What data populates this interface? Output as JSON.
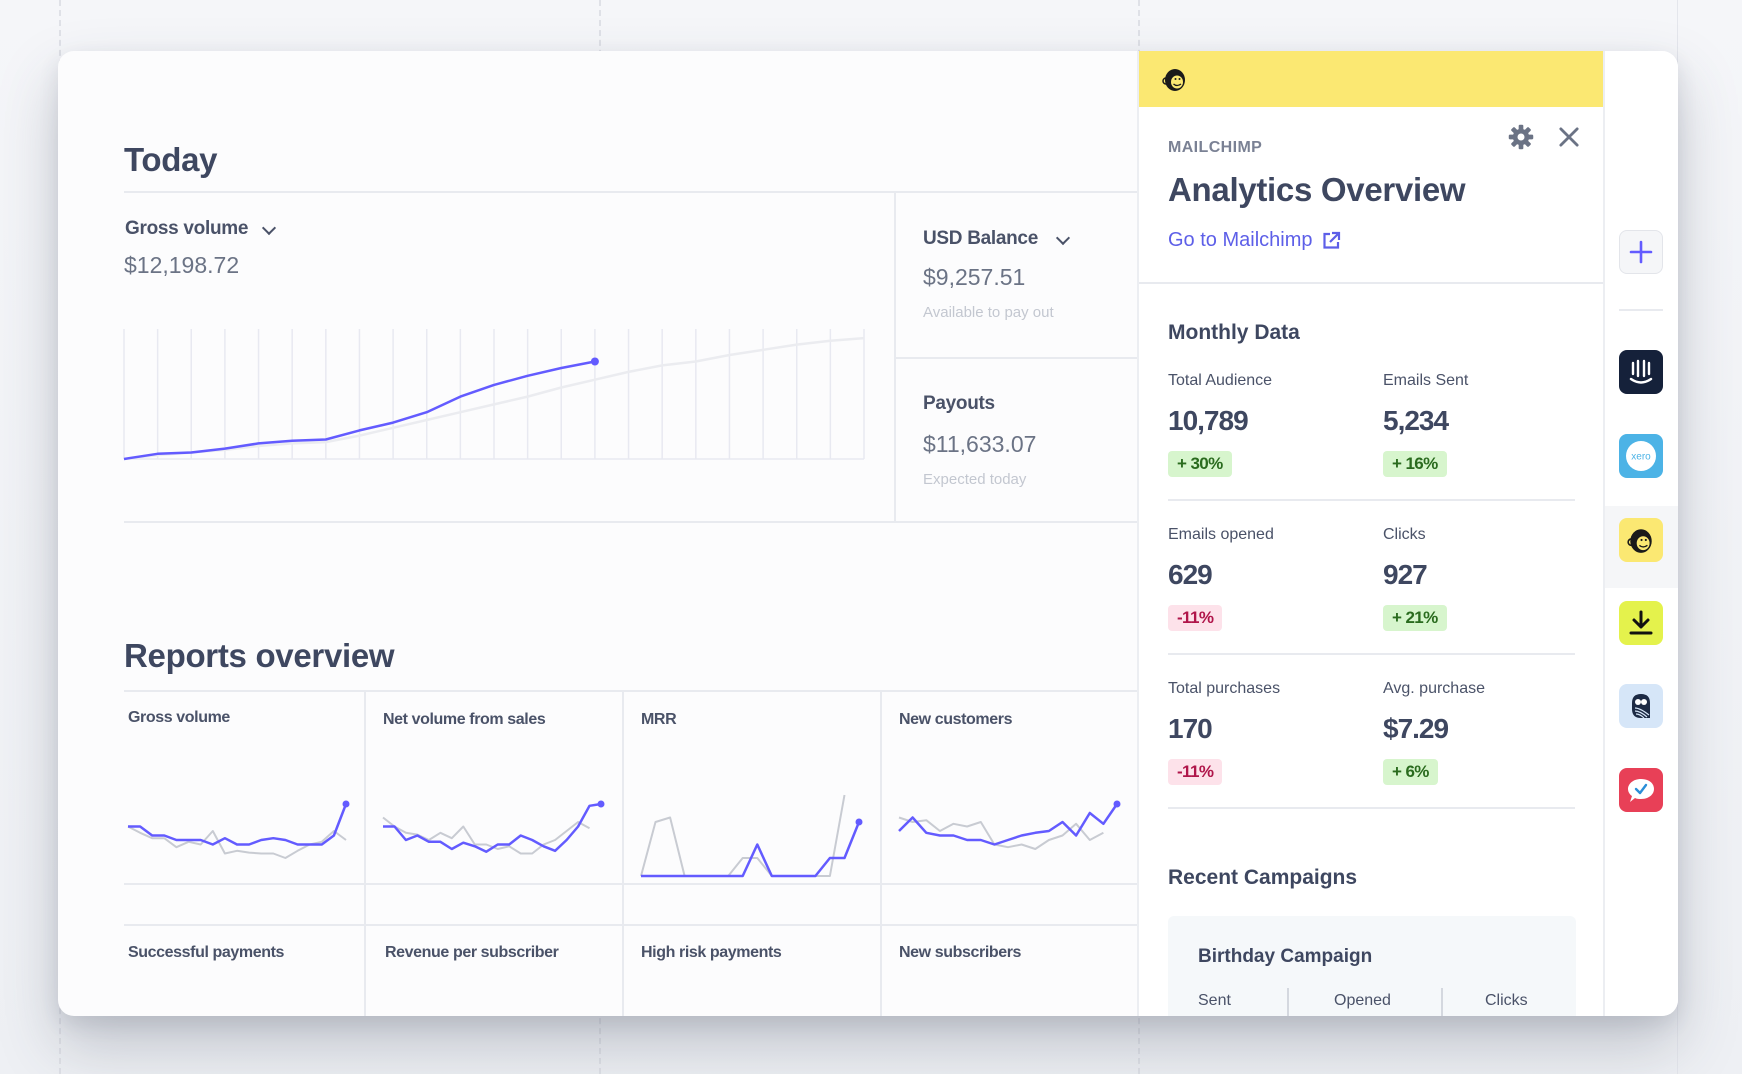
{
  "today": {
    "title": "Today",
    "gross_volume": {
      "label": "Gross volume",
      "value": "$12,198.72"
    },
    "usd_balance": {
      "label": "USD Balance",
      "value": "$9,257.51",
      "sub": "Available to pay out"
    },
    "payouts": {
      "label": "Payouts",
      "value": "$11,633.07",
      "sub": "Expected today"
    }
  },
  "reports": {
    "title": "Reports overview",
    "row1": [
      "Gross volume",
      "Net volume from sales",
      "MRR",
      "New customers"
    ],
    "row2": [
      "Successful payments",
      "Revenue per subscriber",
      "High risk payments",
      "New subscribers"
    ]
  },
  "panel": {
    "kicker": "MAILCHIMP",
    "title": "Analytics Overview",
    "link": "Go to Mailchimp",
    "monthly_title": "Monthly Data",
    "stats": [
      {
        "label": "Total Audience",
        "value": "10,789",
        "change": "+ 30%",
        "trend": "up"
      },
      {
        "label": "Emails Sent",
        "value": "5,234",
        "change": "+ 16%",
        "trend": "up"
      },
      {
        "label": "Emails opened",
        "value": "629",
        "change": "-11%",
        "trend": "down"
      },
      {
        "label": "Clicks",
        "value": "927",
        "change": "+ 21%",
        "trend": "up"
      },
      {
        "label": "Total purchases",
        "value": "170",
        "change": "-11%",
        "trend": "down"
      },
      {
        "label": "Avg. purchase",
        "value": "$7.29",
        "change": "+ 6%",
        "trend": "up"
      }
    ],
    "recent_title": "Recent Campaigns",
    "campaign": {
      "name": "Birthday Campaign",
      "columns": [
        "Sent",
        "Opened",
        "Clicks"
      ]
    }
  },
  "rail": {
    "apps": [
      "add-app",
      "intercom",
      "xero",
      "mailchimp",
      "download-app",
      "owl-app",
      "chat-check-app"
    ]
  },
  "colors": {
    "accent": "#635bff",
    "comparison": "#c8cbd2",
    "mailchimp_yellow": "#fbe872"
  },
  "chart_data": [
    {
      "type": "line",
      "title": "Gross volume",
      "series": [
        {
          "name": "today",
          "values": [
            0,
            4,
            5,
            8,
            12,
            14,
            15,
            22,
            28,
            36,
            48,
            57,
            64,
            70,
            75
          ]
        },
        {
          "name": "comparison",
          "values": [
            0,
            3,
            5,
            7,
            10,
            12,
            13,
            18,
            24,
            30,
            36,
            42,
            48,
            55,
            61,
            67,
            72,
            75,
            80,
            84,
            88,
            91,
            93
          ]
        }
      ],
      "ylim": [
        0,
        100
      ]
    },
    {
      "type": "line",
      "title": "Gross volume",
      "series": [
        {
          "name": "current",
          "values": [
            55,
            55,
            45,
            45,
            40,
            40,
            40,
            35,
            42,
            35,
            35,
            40,
            42,
            40,
            35,
            35,
            35,
            45,
            80
          ]
        },
        {
          "name": "comparison",
          "values": [
            55,
            48,
            42,
            42,
            32,
            38,
            35,
            50,
            25,
            28,
            26,
            25,
            25,
            20,
            28,
            35,
            38,
            50,
            40
          ]
        }
      ],
      "ylim": [
        0,
        100
      ]
    },
    {
      "type": "line",
      "title": "Net volume from sales",
      "series": [
        {
          "name": "current",
          "values": [
            55,
            55,
            40,
            45,
            38,
            38,
            30,
            37,
            33,
            27,
            35,
            35,
            45,
            40,
            33,
            28,
            40,
            55,
            78,
            80
          ]
        },
        {
          "name": "comparison",
          "values": [
            65,
            55,
            48,
            46,
            40,
            48,
            42,
            55,
            35,
            35,
            30,
            33,
            25,
            25,
            35,
            40,
            50,
            60,
            53
          ]
        }
      ],
      "ylim": [
        0,
        100
      ]
    },
    {
      "type": "line",
      "title": "MRR",
      "series": [
        {
          "name": "current",
          "values": [
            0,
            0,
            0,
            0,
            0,
            0,
            0,
            0,
            35,
            0,
            0,
            0,
            0,
            20,
            20,
            60
          ]
        },
        {
          "name": "comparison",
          "values": [
            0,
            60,
            65,
            0,
            0,
            0,
            0,
            20,
            20,
            0,
            0,
            0,
            0,
            0,
            90
          ]
        }
      ],
      "ylim": [
        0,
        100
      ]
    },
    {
      "type": "line",
      "title": "New customers",
      "series": [
        {
          "name": "current",
          "values": [
            50,
            65,
            48,
            45,
            45,
            40,
            40,
            35,
            40,
            45,
            48,
            50,
            60,
            45,
            70,
            58,
            80
          ]
        },
        {
          "name": "comparison",
          "values": [
            65,
            60,
            62,
            50,
            58,
            55,
            60,
            35,
            32,
            35,
            30,
            40,
            45,
            58,
            40,
            48
          ]
        }
      ],
      "ylim": [
        0,
        100
      ]
    }
  ]
}
